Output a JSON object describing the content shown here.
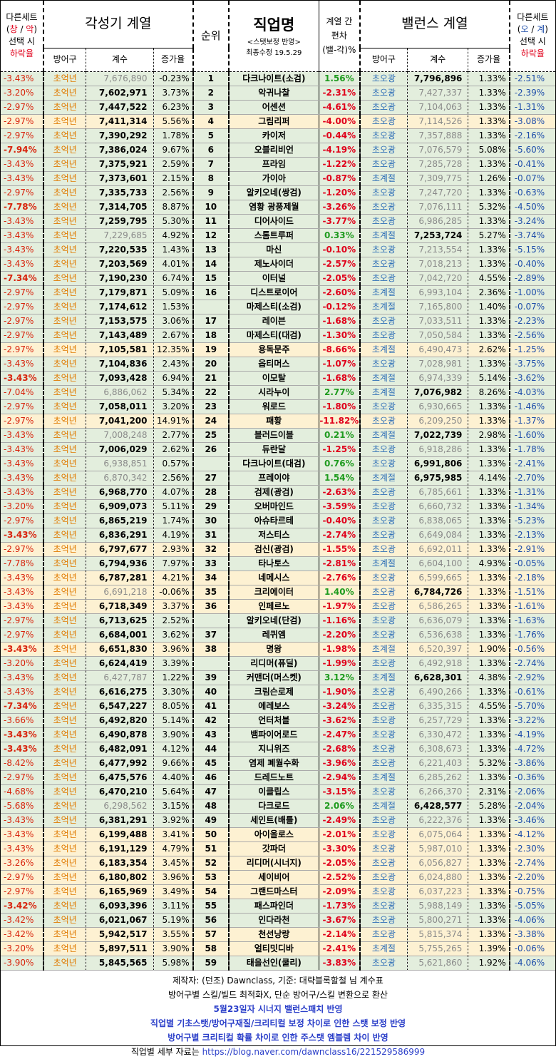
{
  "header": {
    "left_note": [
      "다른세트",
      "(창 / 악)",
      "선택 시",
      "하락율"
    ],
    "left_note_parts": {
      "open": "(",
      "a": "창",
      "slash": " / ",
      "b": "악",
      "close": ")"
    },
    "awakening_title": "각성기 계열",
    "rank_title": "순위",
    "job_title": "직업명",
    "job_sub1": "<스탯보정 반영>",
    "job_sub2": "최종수정 19.5.29",
    "dev_title1": "계열 간",
    "dev_title2": "편차",
    "dev_title3": "(밸-각)%",
    "balance_title": "밸런스 계열",
    "right_note": [
      "다른세트",
      "(오 / 계)",
      "선택 시",
      "하락율"
    ],
    "right_note_parts": {
      "open": "(",
      "a": "오",
      "slash": " / ",
      "b": "계",
      "close": ")"
    },
    "armor": "방어구",
    "coef": "계수",
    "inc": "증가율"
  },
  "colors": {
    "green_row": "#e3eedd",
    "yellow_row": "#fdf1d2",
    "negative": "#e0001b",
    "positive": "#1e9b1e",
    "blue": "#1f4eaa"
  },
  "rows": [
    [
      "-3.43%",
      "초억년",
      "7,676,890",
      "-0.23%",
      "1",
      "다크나이트(소검)",
      "1.56%",
      "초오광",
      "7,796,896",
      "1.33%",
      "-2.51%",
      "g",
      0,
      1
    ],
    [
      "-3.20%",
      "초억년",
      "7,602,971",
      "3.73%",
      "2",
      "악귀나찰",
      "-2.31%",
      "초오광",
      "7,427,337",
      "1.33%",
      "-2.39%",
      "g",
      1,
      0
    ],
    [
      "-2.97%",
      "초억년",
      "7,447,522",
      "6.23%",
      "3",
      "어센션",
      "-4.61%",
      "초오광",
      "7,104,063",
      "1.33%",
      "-1.31%",
      "g",
      1,
      0
    ],
    [
      "-2.97%",
      "초억년",
      "7,411,314",
      "5.56%",
      "4",
      "그림리퍼",
      "-4.00%",
      "초오광",
      "7,114,526",
      "1.33%",
      "-3.08%",
      "y",
      1,
      0
    ],
    [
      "-2.97%",
      "초억년",
      "7,390,292",
      "1.78%",
      "5",
      "카이저",
      "-0.44%",
      "초오광",
      "7,357,888",
      "1.33%",
      "-2.16%",
      "g",
      1,
      0
    ],
    [
      "-7.94%",
      "초억년",
      "7,386,024",
      "9.67%",
      "6",
      "오블리비언",
      "-4.19%",
      "초오광",
      "7,076,579",
      "5.08%",
      "-5.60%",
      "g",
      1,
      0
    ],
    [
      "-3.43%",
      "초억년",
      "7,375,921",
      "2.59%",
      "7",
      "프라임",
      "-1.22%",
      "초오광",
      "7,285,728",
      "1.33%",
      "-0.41%",
      "g",
      1,
      0
    ],
    [
      "-3.43%",
      "초억년",
      "7,373,601",
      "2.15%",
      "8",
      "가이아",
      "-0.87%",
      "초계절",
      "7,309,775",
      "1.26%",
      "-0.07%",
      "g",
      1,
      0
    ],
    [
      "-2.97%",
      "초억년",
      "7,335,733",
      "2.56%",
      "9",
      "알키오네(쌍검)",
      "-1.20%",
      "초오광",
      "7,247,720",
      "1.33%",
      "-0.63%",
      "g",
      1,
      0
    ],
    [
      "-7.78%",
      "초억년",
      "7,314,705",
      "8.87%",
      "10",
      "염황 광풍제월",
      "-3.26%",
      "초오광",
      "7,076,111",
      "5.32%",
      "-4.50%",
      "g",
      1,
      0
    ],
    [
      "-3.43%",
      "초억년",
      "7,259,795",
      "5.30%",
      "11",
      "디어사이드",
      "-3.77%",
      "초오광",
      "6,986,285",
      "1.33%",
      "-3.24%",
      "g",
      1,
      0
    ],
    [
      "-3.43%",
      "초억년",
      "7,229,685",
      "4.92%",
      "12",
      "스톰트루퍼",
      "0.33%",
      "초계절",
      "7,253,724",
      "5.27%",
      "-3.74%",
      "g",
      0,
      1
    ],
    [
      "-3.43%",
      "초억년",
      "7,220,535",
      "1.43%",
      "13",
      "마신",
      "-0.10%",
      "초오광",
      "7,213,554",
      "1.33%",
      "-5.15%",
      "g",
      1,
      0
    ],
    [
      "-3.43%",
      "초억년",
      "7,203,569",
      "4.01%",
      "14",
      "제노사이더",
      "-2.57%",
      "초오광",
      "7,018,213",
      "1.33%",
      "-0.40%",
      "g",
      1,
      0
    ],
    [
      "-7.34%",
      "초억년",
      "7,190,230",
      "6.74%",
      "15",
      "이터널",
      "-2.05%",
      "초오광",
      "7,042,720",
      "4.55%",
      "-2.89%",
      "g",
      1,
      0
    ],
    [
      "-2.97%",
      "초억년",
      "7,179,871",
      "5.09%",
      "16",
      "디스트로이어",
      "-2.60%",
      "초계절",
      "6,993,104",
      "2.36%",
      "-1.00%",
      "g",
      1,
      0
    ],
    [
      "-2.97%",
      "초억년",
      "7,174,612",
      "1.53%",
      "",
      "마제스티(소검)",
      "-0.12%",
      "초계절",
      "7,165,800",
      "1.40%",
      "-0.07%",
      "g",
      1,
      0
    ],
    [
      "-2.97%",
      "초억년",
      "7,153,575",
      "3.06%",
      "17",
      "레이븐",
      "-1.68%",
      "초오광",
      "7,033,511",
      "1.33%",
      "-2.23%",
      "g",
      1,
      0
    ],
    [
      "-2.97%",
      "초억년",
      "7,143,489",
      "2.67%",
      "18",
      "마제스티(대검)",
      "-1.30%",
      "초오광",
      "7,050,584",
      "1.33%",
      "-2.56%",
      "g",
      1,
      0
    ],
    [
      "-2.97%",
      "초억년",
      "7,105,581",
      "12.35%",
      "19",
      "용독문주",
      "-8.66%",
      "초계절",
      "6,490,473",
      "2.62%",
      "-1.25%",
      "y",
      1,
      0
    ],
    [
      "-3.43%",
      "초억년",
      "7,104,836",
      "2.43%",
      "20",
      "옵티머스",
      "-1.07%",
      "초오광",
      "7,028,981",
      "1.33%",
      "-3.75%",
      "g",
      1,
      0
    ],
    [
      "-3.43%",
      "초억년",
      "7,093,428",
      "6.94%",
      "21",
      "이모탈",
      "-1.68%",
      "초계절",
      "6,974,339",
      "5.14%",
      "-3.62%",
      "g",
      1,
      0
    ],
    [
      "-7.04%",
      "초억년",
      "6,886,062",
      "5.34%",
      "22",
      "시라누이",
      "2.77%",
      "초계절",
      "7,076,982",
      "8.26%",
      "-4.03%",
      "g",
      0,
      1
    ],
    [
      "-2.97%",
      "초억년",
      "7,058,011",
      "3.20%",
      "23",
      "워로드",
      "-1.80%",
      "초오광",
      "6,930,665",
      "1.33%",
      "-1.46%",
      "g",
      1,
      0
    ],
    [
      "-2.97%",
      "초억년",
      "7,041,200",
      "14.91%",
      "24",
      "패황",
      "-11.82%",
      "초오광",
      "6,209,250",
      "1.33%",
      "-1.37%",
      "y",
      1,
      0
    ],
    [
      "-3.43%",
      "초억년",
      "7,008,248",
      "2.77%",
      "25",
      "블러드이블",
      "0.21%",
      "초계절",
      "7,022,739",
      "2.98%",
      "-1.60%",
      "g",
      0,
      1
    ],
    [
      "-3.43%",
      "초억년",
      "7,006,029",
      "2.62%",
      "26",
      "듀란달",
      "-1.25%",
      "초오광",
      "6,918,286",
      "1.33%",
      "-1.78%",
      "g",
      1,
      0
    ],
    [
      "-3.43%",
      "초억년",
      "6,938,851",
      "0.57%",
      "",
      "다크나이트(대검)",
      "0.76%",
      "초오광",
      "6,991,806",
      "1.33%",
      "-2.41%",
      "g",
      0,
      1
    ],
    [
      "-3.43%",
      "초억년",
      "6,870,342",
      "2.56%",
      "27",
      "프레이야",
      "1.54%",
      "초계절",
      "6,975,985",
      "4.14%",
      "-2.70%",
      "g",
      0,
      1
    ],
    [
      "-3.43%",
      "초억년",
      "6,968,770",
      "4.07%",
      "28",
      "검제(광검)",
      "-2.63%",
      "초오광",
      "6,785,661",
      "1.33%",
      "-1.31%",
      "g",
      1,
      0
    ],
    [
      "-3.20%",
      "초억년",
      "6,909,073",
      "5.11%",
      "29",
      "오버마인드",
      "-3.59%",
      "초오광",
      "6,660,732",
      "1.33%",
      "-1.34%",
      "g",
      1,
      0
    ],
    [
      "-2.97%",
      "초억년",
      "6,865,219",
      "1.74%",
      "30",
      "아슈타르테",
      "-0.40%",
      "초오광",
      "6,838,065",
      "1.33%",
      "-5.23%",
      "g",
      1,
      0
    ],
    [
      "-3.43%",
      "초억년",
      "6,836,291",
      "4.19%",
      "31",
      "저스티스",
      "-2.74%",
      "초오광",
      "6,649,084",
      "1.33%",
      "-2.13%",
      "g",
      1,
      0
    ],
    [
      "-2.97%",
      "초억년",
      "6,797,677",
      "2.93%",
      "32",
      "검신(광검)",
      "-1.55%",
      "초오광",
      "6,692,011",
      "1.33%",
      "-2.91%",
      "y",
      1,
      0
    ],
    [
      "-7.78%",
      "초억년",
      "6,794,936",
      "7.97%",
      "33",
      "타나토스",
      "-2.81%",
      "초계절",
      "6,604,100",
      "4.93%",
      "-0.05%",
      "g",
      1,
      0
    ],
    [
      "-3.43%",
      "초억년",
      "6,787,281",
      "4.21%",
      "34",
      "네메시스",
      "-2.76%",
      "초오광",
      "6,599,665",
      "1.33%",
      "-2.18%",
      "y",
      1,
      0
    ],
    [
      "-3.43%",
      "초억년",
      "6,691,218",
      "-0.06%",
      "35",
      "크리에이터",
      "1.40%",
      "초오광",
      "6,784,726",
      "1.33%",
      "-1.51%",
      "y",
      0,
      1
    ],
    [
      "-3.43%",
      "초억년",
      "6,718,349",
      "3.37%",
      "36",
      "인페르노",
      "-1.97%",
      "초오광",
      "6,586,265",
      "1.33%",
      "-1.61%",
      "y",
      1,
      0
    ],
    [
      "-2.97%",
      "초억년",
      "6,713,625",
      "2.52%",
      "",
      "알키오네(단검)",
      "-1.16%",
      "초오광",
      "6,636,079",
      "1.33%",
      "-1.63%",
      "g",
      1,
      0
    ],
    [
      "-2.97%",
      "초억년",
      "6,684,001",
      "3.62%",
      "37",
      "레퀴엠",
      "-2.20%",
      "초오광",
      "6,536,638",
      "1.33%",
      "-1.76%",
      "g",
      1,
      0
    ],
    [
      "-3.43%",
      "초억년",
      "6,651,830",
      "3.96%",
      "38",
      "명왕",
      "-1.98%",
      "초계절",
      "6,520,397",
      "1.90%",
      "-0.56%",
      "y",
      1,
      0
    ],
    [
      "-3.20%",
      "초억년",
      "6,624,419",
      "3.39%",
      "",
      "리디머(퓨딜)",
      "-1.99%",
      "초오광",
      "6,492,918",
      "1.33%",
      "-2.74%",
      "g",
      1,
      0
    ],
    [
      "-3.43%",
      "초억년",
      "6,427,787",
      "1.22%",
      "39",
      "커맨더(머스켓)",
      "3.12%",
      "초계절",
      "6,628,301",
      "4.38%",
      "-2.92%",
      "g",
      0,
      1
    ],
    [
      "-3.43%",
      "초억년",
      "6,616,275",
      "3.30%",
      "40",
      "크림슨로제",
      "-1.90%",
      "초오광",
      "6,490,266",
      "1.33%",
      "-0.61%",
      "g",
      1,
      0
    ],
    [
      "-7.34%",
      "초억년",
      "6,547,227",
      "8.05%",
      "41",
      "에레보스",
      "-3.24%",
      "초오광",
      "6,335,315",
      "4.55%",
      "-5.70%",
      "g",
      1,
      0
    ],
    [
      "-3.66%",
      "초억년",
      "6,492,820",
      "5.14%",
      "42",
      "언터처블",
      "-3.62%",
      "초오광",
      "6,257,729",
      "1.33%",
      "-3.22%",
      "g",
      1,
      0
    ],
    [
      "-3.43%",
      "초억년",
      "6,490,878",
      "3.90%",
      "43",
      "뱀파이어로드",
      "-2.47%",
      "초오광",
      "6,330,472",
      "1.33%",
      "-4.19%",
      "g",
      1,
      0
    ],
    [
      "-3.43%",
      "초억년",
      "6,482,091",
      "4.12%",
      "44",
      "지니위즈",
      "-2.68%",
      "초오광",
      "6,308,673",
      "1.33%",
      "-4.72%",
      "g",
      1,
      0
    ],
    [
      "-8.42%",
      "초억년",
      "6,477,992",
      "9.66%",
      "45",
      "염제 폐월수화",
      "-3.96%",
      "초오광",
      "6,221,403",
      "5.32%",
      "-3.86%",
      "g",
      1,
      0
    ],
    [
      "-2.97%",
      "초억년",
      "6,475,576",
      "4.40%",
      "46",
      "드레드노트",
      "-2.94%",
      "초계절",
      "6,285,262",
      "1.33%",
      "-0.36%",
      "g",
      1,
      0
    ],
    [
      "-4.68%",
      "초억년",
      "6,470,210",
      "5.64%",
      "47",
      "이클립스",
      "-3.15%",
      "초오광",
      "6,266,370",
      "2.31%",
      "-2.06%",
      "g",
      1,
      0
    ],
    [
      "-5.68%",
      "초억년",
      "6,298,562",
      "3.15%",
      "48",
      "다크로드",
      "2.06%",
      "초계절",
      "6,428,577",
      "5.28%",
      "-2.04%",
      "g",
      0,
      1
    ],
    [
      "-3.43%",
      "초억년",
      "6,381,291",
      "3.92%",
      "49",
      "세인트(배틀)",
      "-2.49%",
      "초오광",
      "6,222,376",
      "1.33%",
      "-3.46%",
      "g",
      1,
      0
    ],
    [
      "-3.43%",
      "초억년",
      "6,199,488",
      "3.41%",
      "50",
      "아이올로스",
      "-2.01%",
      "초오광",
      "6,075,064",
      "1.33%",
      "-4.12%",
      "y",
      1,
      0
    ],
    [
      "-3.43%",
      "초억년",
      "6,191,129",
      "4.79%",
      "51",
      "갓파더",
      "-3.30%",
      "초오광",
      "5,987,010",
      "1.33%",
      "-2.30%",
      "y",
      1,
      0
    ],
    [
      "-3.26%",
      "초억년",
      "6,183,354",
      "3.45%",
      "52",
      "리디머(시너지)",
      "-2.05%",
      "초오광",
      "6,056,827",
      "1.33%",
      "-2.74%",
      "y",
      1,
      0
    ],
    [
      "-2.97%",
      "초억년",
      "6,180,802",
      "3.96%",
      "53",
      "세이비어",
      "-2.52%",
      "초오광",
      "6,024,880",
      "1.33%",
      "-2.20%",
      "y",
      1,
      0
    ],
    [
      "-2.97%",
      "초억년",
      "6,165,969",
      "3.49%",
      "54",
      "그랜드마스터",
      "-2.09%",
      "초오광",
      "6,037,223",
      "1.33%",
      "-0.75%",
      "y",
      1,
      0
    ],
    [
      "-3.42%",
      "초억년",
      "6,093,396",
      "3.11%",
      "55",
      "패스파인더",
      "-1.73%",
      "초오광",
      "5,988,149",
      "1.33%",
      "-5.05%",
      "g",
      1,
      0
    ],
    [
      "-3.42%",
      "초억년",
      "6,021,067",
      "5.19%",
      "56",
      "인다라천",
      "-3.67%",
      "초오광",
      "5,800,271",
      "1.33%",
      "-4.06%",
      "g",
      1,
      0
    ],
    [
      "-3.42%",
      "초억년",
      "5,942,517",
      "3.55%",
      "57",
      "천선낭랑",
      "-2.14%",
      "초오광",
      "5,815,374",
      "1.33%",
      "-3.38%",
      "y",
      1,
      0
    ],
    [
      "-3.20%",
      "초억년",
      "5,897,511",
      "3.90%",
      "58",
      "얼티밋디바",
      "-2.41%",
      "초계절",
      "5,755,265",
      "1.39%",
      "-0.06%",
      "y",
      1,
      0
    ],
    [
      "-3.90%",
      "초억년",
      "5,845,565",
      "5.98%",
      "59",
      "태을선인(쿨리)",
      "-3.83%",
      "초오광",
      "5,621,860",
      "1.92%",
      "-4.06%",
      "g",
      1,
      0
    ]
  ],
  "footer": {
    "line1": "제작자: (던조) Dawnclass, 기준: 대략블록할철 님 계수표",
    "line2": "방어구별 스킬/빌드 최적화X, 단순 방어구/스킬 변환으로 환산",
    "line3": "5월23일자 시너지 밸런스패치 반영",
    "line4": "직업별 기초스탯/방어구재질/크리티컬 보정 차이로 인한 스탯 보정 반영",
    "line5": "방어구별 크리티컬 확률 차이로 인한 주스탯 엠블렘 차이 반영",
    "line6_prefix": "직업별 세부 자료는 ",
    "line6_url": "https://blog.naver.com/dawnclass16/221529586999"
  }
}
